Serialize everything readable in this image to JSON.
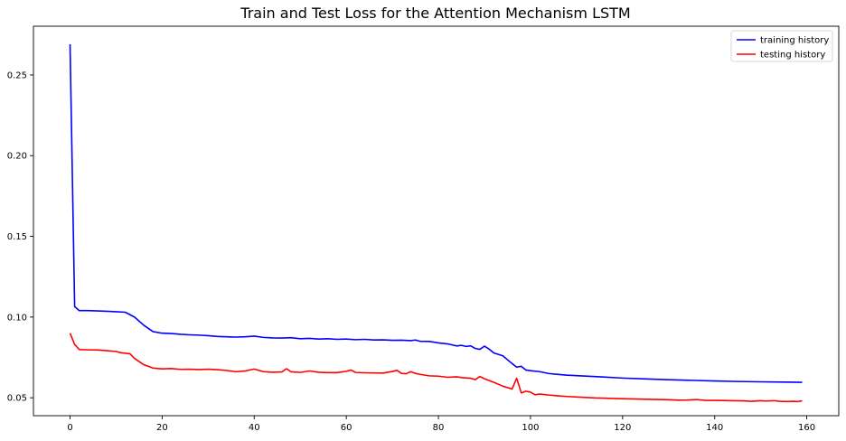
{
  "chart_data": {
    "type": "line",
    "title": "Train and Test Loss for the Attention Mechanism LSTM",
    "xlabel": "",
    "ylabel": "",
    "xlim": [
      -7.95,
      166.95
    ],
    "ylim": [
      0.0389,
      0.2802
    ],
    "x_ticks": [
      0,
      20,
      40,
      60,
      80,
      100,
      120,
      140,
      160
    ],
    "y_ticks": [
      0.05,
      0.1,
      0.15,
      0.2,
      0.25
    ],
    "y_tick_labels": [
      "0.05",
      "0.10",
      "0.15",
      "0.20",
      "0.25"
    ],
    "grid": false,
    "legend_position": "top-right",
    "series": [
      {
        "name": "training history",
        "color": "#0000ff",
        "points": [
          [
            0,
            0.269
          ],
          [
            1,
            0.1065
          ],
          [
            2,
            0.104
          ],
          [
            4,
            0.104
          ],
          [
            6,
            0.1038
          ],
          [
            8,
            0.1036
          ],
          [
            10,
            0.1033
          ],
          [
            12,
            0.103
          ],
          [
            14,
            0.1
          ],
          [
            16,
            0.095
          ],
          [
            18,
            0.091
          ],
          [
            20,
            0.09
          ],
          [
            22,
            0.0898
          ],
          [
            24,
            0.0893
          ],
          [
            26,
            0.089
          ],
          [
            28,
            0.0888
          ],
          [
            30,
            0.0885
          ],
          [
            32,
            0.088
          ],
          [
            34,
            0.0878
          ],
          [
            36,
            0.0876
          ],
          [
            38,
            0.0878
          ],
          [
            40,
            0.0882
          ],
          [
            42,
            0.0874
          ],
          [
            44,
            0.0871
          ],
          [
            46,
            0.087
          ],
          [
            48,
            0.0872
          ],
          [
            50,
            0.0866
          ],
          [
            52,
            0.0868
          ],
          [
            54,
            0.0864
          ],
          [
            56,
            0.0866
          ],
          [
            58,
            0.0862
          ],
          [
            60,
            0.0864
          ],
          [
            62,
            0.086
          ],
          [
            64,
            0.0862
          ],
          [
            66,
            0.0858
          ],
          [
            68,
            0.0859
          ],
          [
            70,
            0.0856
          ],
          [
            72,
            0.0857
          ],
          [
            74,
            0.0854
          ],
          [
            75,
            0.0858
          ],
          [
            76,
            0.085
          ],
          [
            78,
            0.0849
          ],
          [
            80,
            0.084
          ],
          [
            82,
            0.0834
          ],
          [
            84,
            0.0821
          ],
          [
            85,
            0.0825
          ],
          [
            86,
            0.0818
          ],
          [
            87,
            0.0822
          ],
          [
            88,
            0.0806
          ],
          [
            89,
            0.08
          ],
          [
            90,
            0.082
          ],
          [
            91,
            0.0802
          ],
          [
            92,
            0.0778
          ],
          [
            94,
            0.076
          ],
          [
            96,
            0.0712
          ],
          [
            97,
            0.069
          ],
          [
            98,
            0.0695
          ],
          [
            99,
            0.0672
          ],
          [
            100,
            0.0668
          ],
          [
            102,
            0.0662
          ],
          [
            104,
            0.065
          ],
          [
            106,
            0.0645
          ],
          [
            108,
            0.064
          ],
          [
            110,
            0.0637
          ],
          [
            115,
            0.063
          ],
          [
            120,
            0.0622
          ],
          [
            125,
            0.0617
          ],
          [
            130,
            0.0612
          ],
          [
            135,
            0.0608
          ],
          [
            140,
            0.0604
          ],
          [
            145,
            0.0601
          ],
          [
            150,
            0.0599
          ],
          [
            155,
            0.0597
          ],
          [
            159,
            0.0596
          ]
        ]
      },
      {
        "name": "testing history",
        "color": "#ff0000",
        "points": [
          [
            0,
            0.09
          ],
          [
            1,
            0.083
          ],
          [
            2,
            0.0799
          ],
          [
            4,
            0.0797
          ],
          [
            6,
            0.0796
          ],
          [
            8,
            0.0792
          ],
          [
            10,
            0.0787
          ],
          [
            11,
            0.0779
          ],
          [
            13,
            0.0773
          ],
          [
            14,
            0.0744
          ],
          [
            16,
            0.0705
          ],
          [
            18,
            0.0684
          ],
          [
            20,
            0.0679
          ],
          [
            22,
            0.0681
          ],
          [
            24,
            0.0676
          ],
          [
            26,
            0.0677
          ],
          [
            28,
            0.0675
          ],
          [
            30,
            0.0677
          ],
          [
            32,
            0.0674
          ],
          [
            34,
            0.0669
          ],
          [
            36,
            0.0662
          ],
          [
            38,
            0.0666
          ],
          [
            40,
            0.0678
          ],
          [
            42,
            0.0662
          ],
          [
            44,
            0.0658
          ],
          [
            46,
            0.066
          ],
          [
            47,
            0.068
          ],
          [
            48,
            0.0661
          ],
          [
            50,
            0.0657
          ],
          [
            52,
            0.0666
          ],
          [
            54,
            0.0658
          ],
          [
            56,
            0.0656
          ],
          [
            58,
            0.0656
          ],
          [
            60,
            0.0664
          ],
          [
            61,
            0.0672
          ],
          [
            62,
            0.0657
          ],
          [
            64,
            0.0655
          ],
          [
            66,
            0.0654
          ],
          [
            68,
            0.0653
          ],
          [
            70,
            0.0663
          ],
          [
            71,
            0.067
          ],
          [
            72,
            0.0651
          ],
          [
            73,
            0.0649
          ],
          [
            74,
            0.0662
          ],
          [
            75,
            0.0651
          ],
          [
            76,
            0.0645
          ],
          [
            78,
            0.0636
          ],
          [
            80,
            0.0634
          ],
          [
            82,
            0.0627
          ],
          [
            84,
            0.063
          ],
          [
            85,
            0.0625
          ],
          [
            87,
            0.0621
          ],
          [
            88,
            0.0612
          ],
          [
            89,
            0.0632
          ],
          [
            90,
            0.0618
          ],
          [
            92,
            0.0596
          ],
          [
            94,
            0.0572
          ],
          [
            96,
            0.0554
          ],
          [
            97,
            0.0621
          ],
          [
            98,
            0.053
          ],
          [
            99,
            0.0541
          ],
          [
            100,
            0.0535
          ],
          [
            101,
            0.0519
          ],
          [
            102,
            0.0523
          ],
          [
            104,
            0.0517
          ],
          [
            106,
            0.0512
          ],
          [
            108,
            0.0508
          ],
          [
            110,
            0.0505
          ],
          [
            112,
            0.0502
          ],
          [
            114,
            0.0499
          ],
          [
            118,
            0.0496
          ],
          [
            122,
            0.0493
          ],
          [
            126,
            0.049
          ],
          [
            130,
            0.0488
          ],
          [
            132,
            0.0485
          ],
          [
            134,
            0.0486
          ],
          [
            136,
            0.0489
          ],
          [
            138,
            0.0484
          ],
          [
            140,
            0.0484
          ],
          [
            142,
            0.0483
          ],
          [
            144,
            0.0482
          ],
          [
            146,
            0.0481
          ],
          [
            148,
            0.0478
          ],
          [
            150,
            0.0482
          ],
          [
            151,
            0.048
          ],
          [
            153,
            0.0482
          ],
          [
            154,
            0.0478
          ],
          [
            156,
            0.0477
          ],
          [
            157,
            0.0478
          ],
          [
            158,
            0.0477
          ],
          [
            159,
            0.0481
          ]
        ]
      }
    ]
  }
}
